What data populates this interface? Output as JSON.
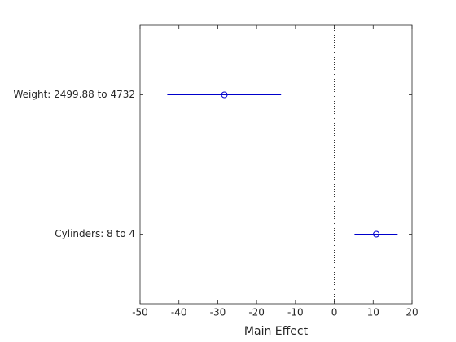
{
  "chart_data": {
    "type": "interval",
    "xlabel": "Main Effect",
    "categories": [
      "Weight: 2499.88 to 4732",
      "Cylinders: 8 to 4"
    ],
    "values": [
      -28.3,
      10.8
    ],
    "lower": [
      -43,
      5.2
    ],
    "upper": [
      -13.7,
      16.3
    ],
    "color": "#0000cc",
    "reference_line": 0,
    "xlim": [
      -50,
      20
    ],
    "xticks": [
      -50,
      -40,
      -30,
      -20,
      -10,
      0,
      10,
      20
    ]
  }
}
